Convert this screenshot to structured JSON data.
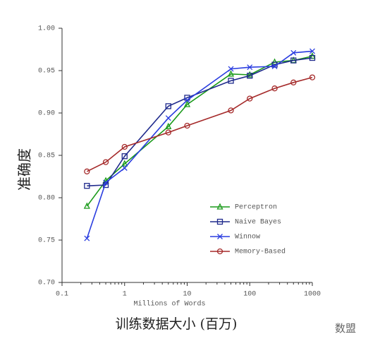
{
  "chart_data": {
    "type": "line",
    "x_label": "Millions of Words",
    "y_label": "准确度",
    "caption": "训练数据大小 (百万)",
    "watermark": "数盟",
    "x": [
      0.25,
      0.5,
      1,
      5,
      10,
      50,
      100,
      250,
      500,
      1000
    ],
    "x_scale": "log",
    "xlim": [
      0.1,
      1000
    ],
    "xticks": [
      0.1,
      1,
      10,
      100,
      1000
    ],
    "ylim": [
      0.7,
      1.0
    ],
    "yticks": [
      {
        "value": 0.7,
        "label": "0.70"
      },
      0.75,
      {
        "value": 0.8,
        "label": "0.80"
      },
      0.85,
      {
        "value": 0.9,
        "label": "0.90"
      },
      0.95,
      {
        "value": 1.0,
        "label": "1.00"
      }
    ],
    "legend": "lower right",
    "series": [
      {
        "name": "Perceptron",
        "color": "#1a9a1a",
        "marker": "triangle",
        "values": [
          0.79,
          0.82,
          0.84,
          0.884,
          0.91,
          0.946,
          0.945,
          0.96,
          0.962,
          0.967
        ]
      },
      {
        "name": "Naive Bayes",
        "color": "#1f2a8c",
        "marker": "square",
        "values": [
          0.814,
          0.815,
          0.849,
          0.908,
          0.918,
          0.938,
          0.944,
          0.957,
          0.962,
          0.965
        ]
      },
      {
        "name": "Winnow",
        "color": "#2a3de0",
        "marker": "x",
        "values": [
          0.752,
          0.818,
          0.835,
          0.894,
          0.915,
          0.952,
          0.954,
          0.955,
          0.971,
          0.973
        ]
      },
      {
        "name": "Memory-Based",
        "color": "#a52a2a",
        "marker": "circle",
        "values": [
          0.831,
          0.842,
          0.86,
          0.877,
          0.885,
          0.903,
          0.917,
          0.929,
          0.936,
          0.942
        ]
      }
    ]
  }
}
